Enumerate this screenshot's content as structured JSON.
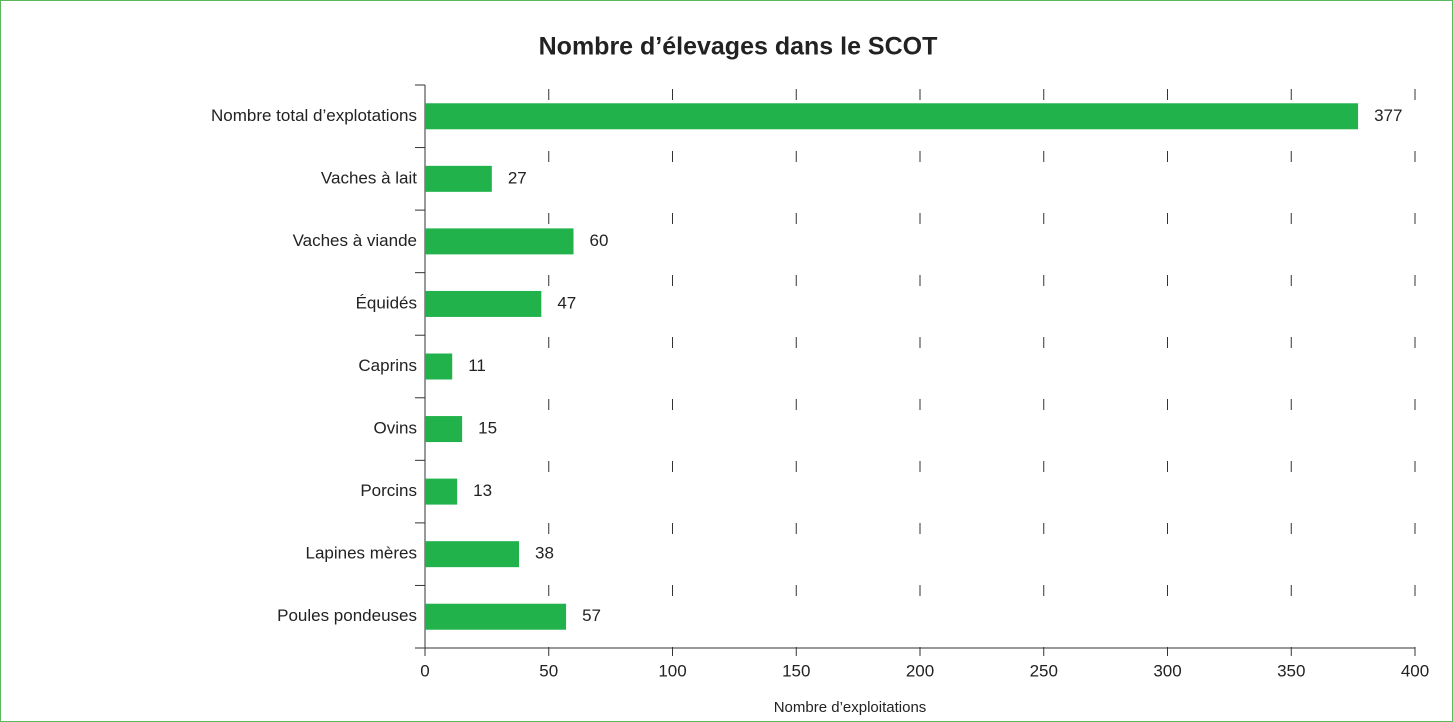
{
  "chart_data": {
    "type": "bar",
    "orientation": "horizontal",
    "title": "Nombre d’élevages dans le SCOT",
    "x_label": "Nombre d’exploitations",
    "categories": [
      "Nombre total d’explotations",
      "Vaches à lait",
      "Vaches à viande",
      "Équidés",
      "Caprins",
      "Ovins",
      "Porcins",
      "Lapines mères",
      "Poules pondeuses"
    ],
    "values": [
      377,
      27,
      60,
      47,
      11,
      15,
      13,
      38,
      57
    ],
    "color": "#22b24c",
    "xlim": [
      0,
      400
    ],
    "xticks": [
      0,
      50,
      100,
      150,
      200,
      250,
      300,
      350,
      400
    ],
    "grid": true
  }
}
